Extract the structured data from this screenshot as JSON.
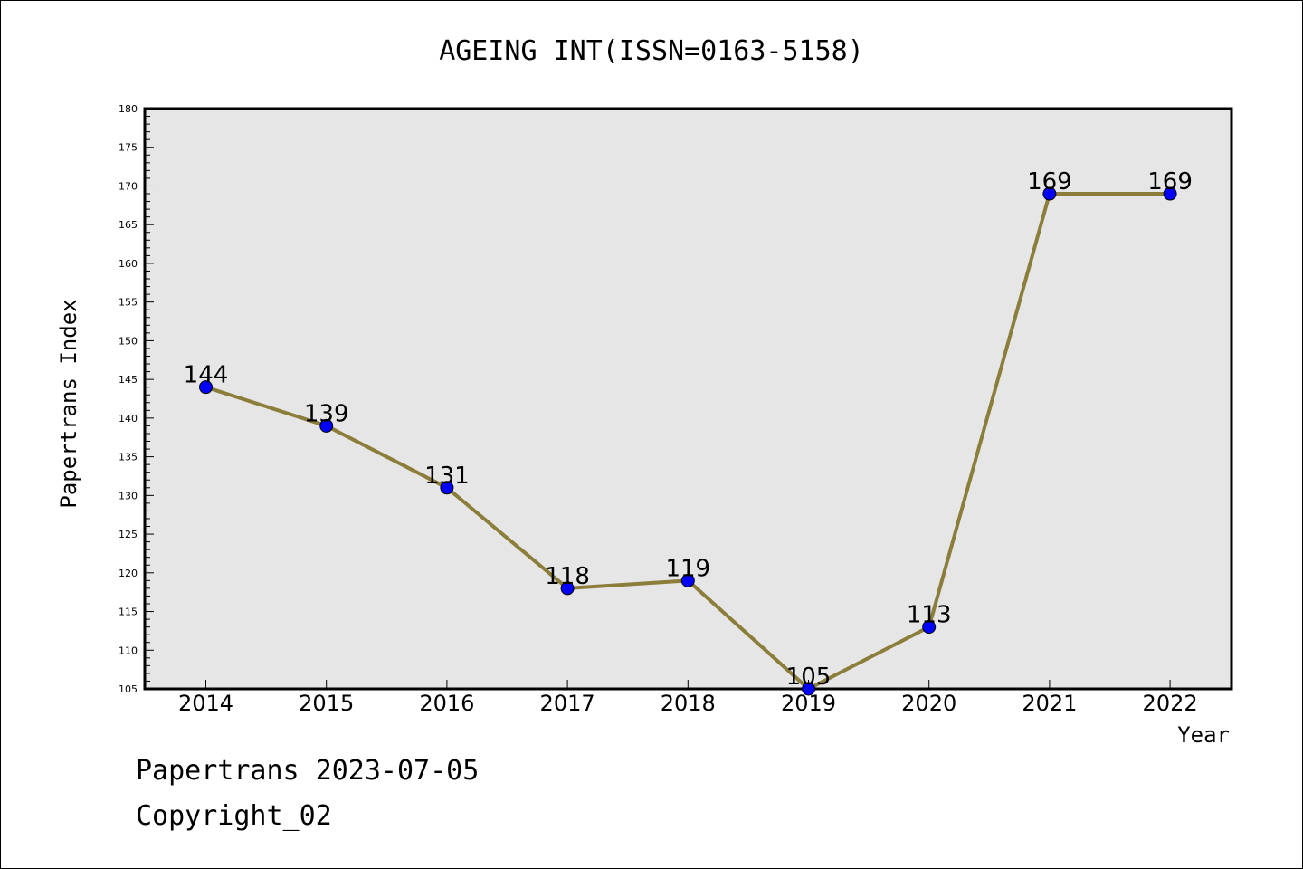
{
  "chart_data": {
    "type": "line",
    "title": "AGEING INT(ISSN=0163-5158)",
    "xlabel": "Year",
    "ylabel": "Papertrans Index",
    "x": [
      "2014",
      "2015",
      "2016",
      "2017",
      "2018",
      "2019",
      "2020",
      "2021",
      "2022"
    ],
    "values": [
      144,
      139,
      131,
      118,
      119,
      105,
      113,
      169,
      169
    ],
    "ylim": [
      105,
      180
    ],
    "yticks": [
      105,
      110,
      115,
      120,
      125,
      130,
      135,
      140,
      145,
      150,
      155,
      160,
      165,
      170,
      175,
      180
    ],
    "grid": false,
    "legend": "none",
    "colors": {
      "line": "#8b7d3a",
      "marker": "#0000ff",
      "plot_background": "#e6e6e6"
    }
  },
  "footer": {
    "line1": "Papertrans 2023-07-05",
    "line2": "Copyright_02"
  }
}
